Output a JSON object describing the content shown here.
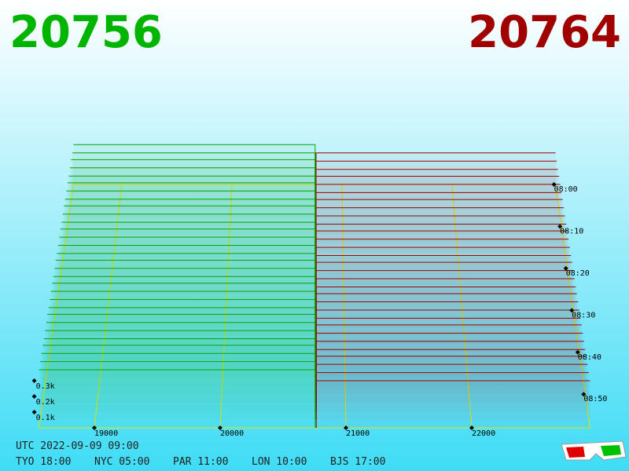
{
  "chart_data": {
    "type": "depth3d",
    "bid_price": 20756,
    "ask_price": 20764,
    "bid_color": "#00a800",
    "ask_color": "#a00000",
    "xlim": [
      18560,
      22940
    ],
    "xticks": [
      19000,
      20000,
      21000,
      22000
    ],
    "tlim": [
      0,
      58
    ],
    "tticks": [
      {
        "value": 0,
        "label": "08:00"
      },
      {
        "value": 10,
        "label": "08:10"
      },
      {
        "value": 20,
        "label": "08:20"
      },
      {
        "value": 30,
        "label": "08:30"
      },
      {
        "value": 40,
        "label": "08:40"
      },
      {
        "value": 50,
        "label": "08:50"
      }
    ],
    "zlim": [
      0,
      0.4
    ],
    "zticks": [
      {
        "value": 0.1,
        "label": "0.1k"
      },
      {
        "value": 0.2,
        "label": "0.2k"
      },
      {
        "value": 0.3,
        "label": "0.3k"
      }
    ],
    "times": [
      0,
      2,
      4,
      6,
      8,
      10,
      12,
      14,
      16,
      18,
      20,
      22,
      24,
      26,
      28,
      30,
      32,
      34,
      36,
      38,
      40,
      42,
      44,
      46,
      48,
      50,
      52,
      54,
      56,
      58
    ],
    "bid_depth": [
      0.29,
      0.29,
      0.3,
      0.3,
      0.3,
      0.31,
      0.31,
      0.31,
      0.32,
      0.32,
      0.32,
      0.33,
      0.33,
      0.33,
      0.33,
      0.34,
      0.34,
      0.34,
      0.35,
      0.35,
      0.35,
      0.35,
      0.36,
      0.36,
      0.36,
      0.36,
      0.37,
      0.37,
      0.37,
      0.37
    ],
    "ask_depth": [
      0.23,
      0.23,
      0.23,
      0.24,
      0.24,
      0.24,
      0.25,
      0.25,
      0.25,
      0.25,
      0.26,
      0.26,
      0.26,
      0.26,
      0.27,
      0.27,
      0.27,
      0.27,
      0.28,
      0.28,
      0.28,
      0.28,
      0.29,
      0.29,
      0.29,
      0.29,
      0.3,
      0.3,
      0.3,
      0.3
    ]
  },
  "footer": {
    "utc": "UTC 2022-09-09 09:00",
    "clocks": [
      "TYO 18:00",
      "NYC 05:00",
      "PAR 11:00",
      "LON 10:00",
      "BJS 17:00"
    ]
  }
}
